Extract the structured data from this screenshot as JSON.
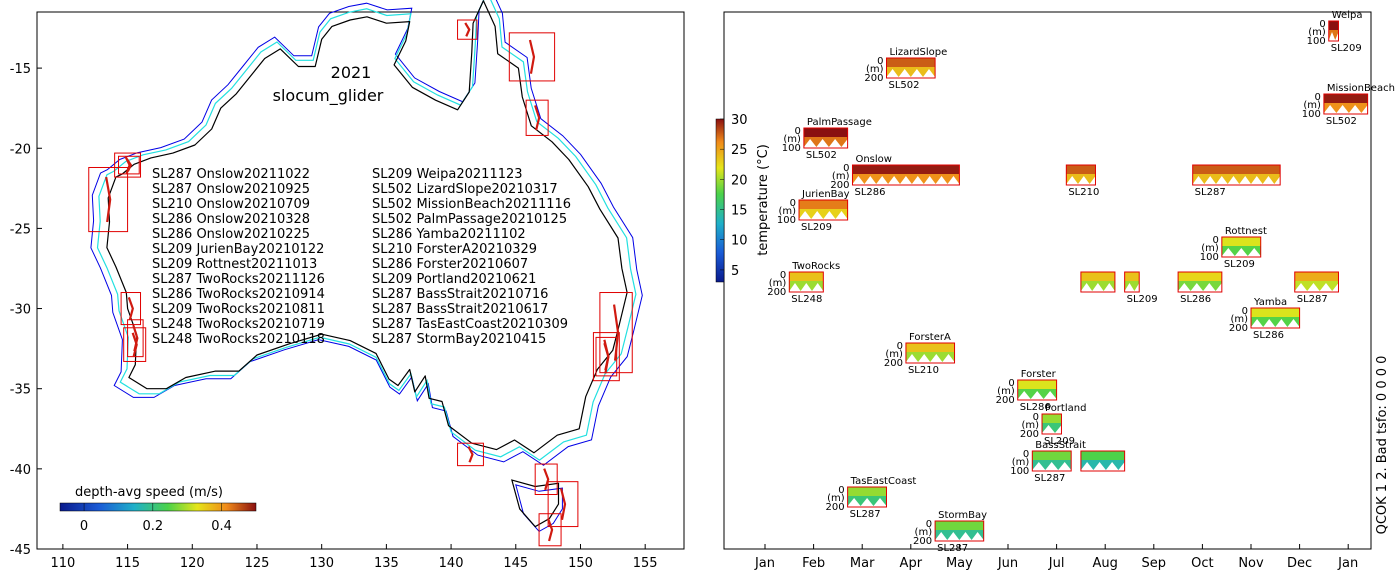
{
  "chart_data": [
    {
      "type": "scatter",
      "title": "2021",
      "subtitle": "slocum_glider",
      "xlabel": "",
      "ylabel": "",
      "xlim": [
        108,
        158
      ],
      "ylim": [
        -45,
        -11.5
      ],
      "xticks": [
        110,
        115,
        120,
        125,
        130,
        135,
        140,
        145,
        150,
        155
      ],
      "yticks": [
        -15,
        -20,
        -25,
        -30,
        -35,
        -40,
        -45
      ],
      "legend_col1": [
        "SL287 Onslow20211022",
        "SL287 Onslow20210925",
        "SL210 Onslow20210709",
        "SL286 Onslow20210328",
        "SL286 Onslow20210225",
        "SL209 JurienBay20210122",
        "SL209 Rottnest20211013",
        "SL287 TwoRocks20211126",
        "SL286 TwoRocks20210914",
        "SL209 TwoRocks20210811",
        "SL248 TwoRocks20210719",
        "SL248 TwoRocks20210118"
      ],
      "legend_col2": [
        "SL209 Weipa20211123",
        "SL502 LizardSlope20210317",
        "SL502 MissionBeach20211116",
        "SL502 PalmPassage20210125",
        "SL286 Yamba20211102",
        "SL210 ForsterA20210329",
        "SL286 Forster20210607",
        "SL209 Portland20210621",
        "SL287 BassStrait20210716",
        "SL287 BassStrait20210617",
        "SL287 TasEastCoast20210309",
        "SL287 StormBay20210415"
      ],
      "deployment_boxes": [
        {
          "lon": [
            140.5,
            142.0
          ],
          "lat": [
            -12.0,
            -13.2
          ]
        },
        {
          "lon": [
            144.5,
            148.0
          ],
          "lat": [
            -12.8,
            -15.8
          ]
        },
        {
          "lon": [
            145.8,
            147.5
          ],
          "lat": [
            -17.0,
            -19.2
          ]
        },
        {
          "lon": [
            114.0,
            116.0
          ],
          "lat": [
            -20.3,
            -21.8
          ]
        },
        {
          "lon": [
            114.3,
            115.9
          ],
          "lat": [
            -20.5,
            -21.6
          ]
        },
        {
          "lon": [
            112.0,
            115.0
          ],
          "lat": [
            -21.2,
            -25.2
          ]
        },
        {
          "lon": [
            114.5,
            116.0
          ],
          "lat": [
            -29.0,
            -31.0
          ]
        },
        {
          "lon": [
            115.0,
            116.2
          ],
          "lat": [
            -30.7,
            -33.0
          ]
        },
        {
          "lon": [
            114.7,
            116.4
          ],
          "lat": [
            -31.2,
            -33.3
          ]
        },
        {
          "lon": [
            151.5,
            154.0
          ],
          "lat": [
            -29.0,
            -34.0
          ]
        },
        {
          "lon": [
            151.0,
            153.0
          ],
          "lat": [
            -31.5,
            -34.5
          ]
        },
        {
          "lon": [
            151.2,
            152.8
          ],
          "lat": [
            -31.8,
            -34.2
          ]
        },
        {
          "lon": [
            140.5,
            142.5
          ],
          "lat": [
            -38.4,
            -39.8
          ]
        },
        {
          "lon": [
            146.5,
            148.2
          ],
          "lat": [
            -39.7,
            -41.6
          ]
        },
        {
          "lon": [
            147.5,
            149.8
          ],
          "lat": [
            -40.8,
            -43.6
          ]
        },
        {
          "lon": [
            146.8,
            148.5
          ],
          "lat": [
            -42.8,
            -44.8
          ]
        }
      ],
      "colorbar": {
        "label": "depth-avg speed (m/s)",
        "ticks": [
          0,
          0.2,
          0.4
        ],
        "range": [
          -0.07,
          0.5
        ]
      }
    },
    {
      "type": "heatmap",
      "xlabel": "",
      "ylabel": "",
      "xticks": [
        "Jan",
        "Feb",
        "Mar",
        "Apr",
        "May",
        "Jun",
        "Jul",
        "Aug",
        "Sep",
        "Oct",
        "Nov",
        "Dec",
        "Jan"
      ],
      "y_axis_label": "(m)",
      "colorbar": {
        "label": "temperature (°C)",
        "ticks": [
          5,
          10,
          15,
          20,
          25,
          30
        ],
        "range": [
          3,
          30
        ]
      },
      "qc_text": "QCOK 1  2. Bad tsfo: 0  0  0  0",
      "deployments": [
        {
          "name": "Weipa",
          "glider": "SL209",
          "start_month": 11.6,
          "end_month": 11.8,
          "ytop": "0",
          "ybottom": "100",
          "temp": 29,
          "row": 0
        },
        {
          "name": "LizardSlope",
          "glider": "SL502",
          "start_month": 2.5,
          "end_month": 3.5,
          "ytop": "0",
          "ybottom": "200",
          "temp": 26,
          "row": 1
        },
        {
          "name": "MissionBeach",
          "glider": "SL502",
          "start_month": 11.5,
          "end_month": 12.4,
          "ytop": "0",
          "ybottom": "100",
          "temp": 28,
          "row": 2
        },
        {
          "name": "PalmPassage",
          "glider": "SL502",
          "start_month": 0.8,
          "end_month": 1.7,
          "ytop": "0",
          "ybottom": "100",
          "temp": 29,
          "row": 3
        },
        {
          "name": "Onslow",
          "glider": "SL286",
          "start_month": 1.8,
          "end_month": 4.0,
          "ytop": "0",
          "ybottom": "200",
          "temp": 28,
          "row": 4
        },
        {
          "name": "",
          "glider": "SL210",
          "start_month": 6.2,
          "end_month": 6.8,
          "ytop": "",
          "ybottom": "",
          "temp": 26,
          "row": 4
        },
        {
          "name": "",
          "glider": "SL287",
          "start_month": 8.8,
          "end_month": 10.6,
          "ytop": "",
          "ybottom": "",
          "temp": 26,
          "row": 4
        },
        {
          "name": "JurienBay",
          "glider": "SL209",
          "start_month": 0.7,
          "end_month": 1.7,
          "ytop": "0",
          "ybottom": "100",
          "temp": 25,
          "row": 5
        },
        {
          "name": "Rottnest",
          "glider": "SL209",
          "start_month": 9.4,
          "end_month": 10.2,
          "ytop": "0",
          "ybottom": "100",
          "temp": 20,
          "row": 6
        },
        {
          "name": "TwoRocks",
          "glider": "SL248",
          "start_month": 0.5,
          "end_month": 1.2,
          "ytop": "0",
          "ybottom": "200",
          "temp": 22,
          "row": 7
        },
        {
          "name": "",
          "glider": "",
          "start_month": 6.5,
          "end_month": 7.2,
          "ytop": "",
          "ybottom": "",
          "temp": 22,
          "row": 7
        },
        {
          "name": "",
          "glider": "SL209",
          "start_month": 7.4,
          "end_month": 7.7,
          "ytop": "",
          "ybottom": "",
          "temp": 22,
          "row": 7
        },
        {
          "name": "",
          "glider": "SL286",
          "start_month": 8.5,
          "end_month": 9.4,
          "ytop": "",
          "ybottom": "",
          "temp": 21,
          "row": 7
        },
        {
          "name": "",
          "glider": "SL287",
          "start_month": 10.9,
          "end_month": 11.8,
          "ytop": "",
          "ybottom": "",
          "temp": 23,
          "row": 7
        },
        {
          "name": "Yamba",
          "glider": "SL286",
          "start_month": 10.0,
          "end_month": 11.0,
          "ytop": "0",
          "ybottom": "200",
          "temp": 20,
          "row": 8
        },
        {
          "name": "ForsterA",
          "glider": "SL210",
          "start_month": 2.9,
          "end_month": 3.9,
          "ytop": "0",
          "ybottom": "200",
          "temp": 22,
          "row": 9
        },
        {
          "name": "Forster",
          "glider": "SL286",
          "start_month": 5.2,
          "end_month": 6.0,
          "ytop": "0",
          "ybottom": "200",
          "temp": 20,
          "row": 10
        },
        {
          "name": "Portland",
          "glider": "SL209",
          "start_month": 5.7,
          "end_month": 6.1,
          "ytop": "0",
          "ybottom": "200",
          "temp": 18,
          "row": 11
        },
        {
          "name": "BassStrait",
          "glider": "SL287",
          "start_month": 5.5,
          "end_month": 6.3,
          "ytop": "0",
          "ybottom": "100",
          "temp": 17,
          "row": 12
        },
        {
          "name": "",
          "glider": "",
          "start_month": 6.5,
          "end_month": 7.4,
          "ytop": "",
          "ybottom": "",
          "temp": 16,
          "row": 12
        },
        {
          "name": "TasEastCoast",
          "glider": "SL287",
          "start_month": 1.7,
          "end_month": 2.5,
          "ytop": "0",
          "ybottom": "200",
          "temp": 18,
          "row": 13
        },
        {
          "name": "StormBay",
          "glider": "SL287",
          "start_month": 3.5,
          "end_month": 4.5,
          "ytop": "0",
          "ybottom": "200",
          "temp": 17,
          "row": 14
        }
      ]
    }
  ]
}
